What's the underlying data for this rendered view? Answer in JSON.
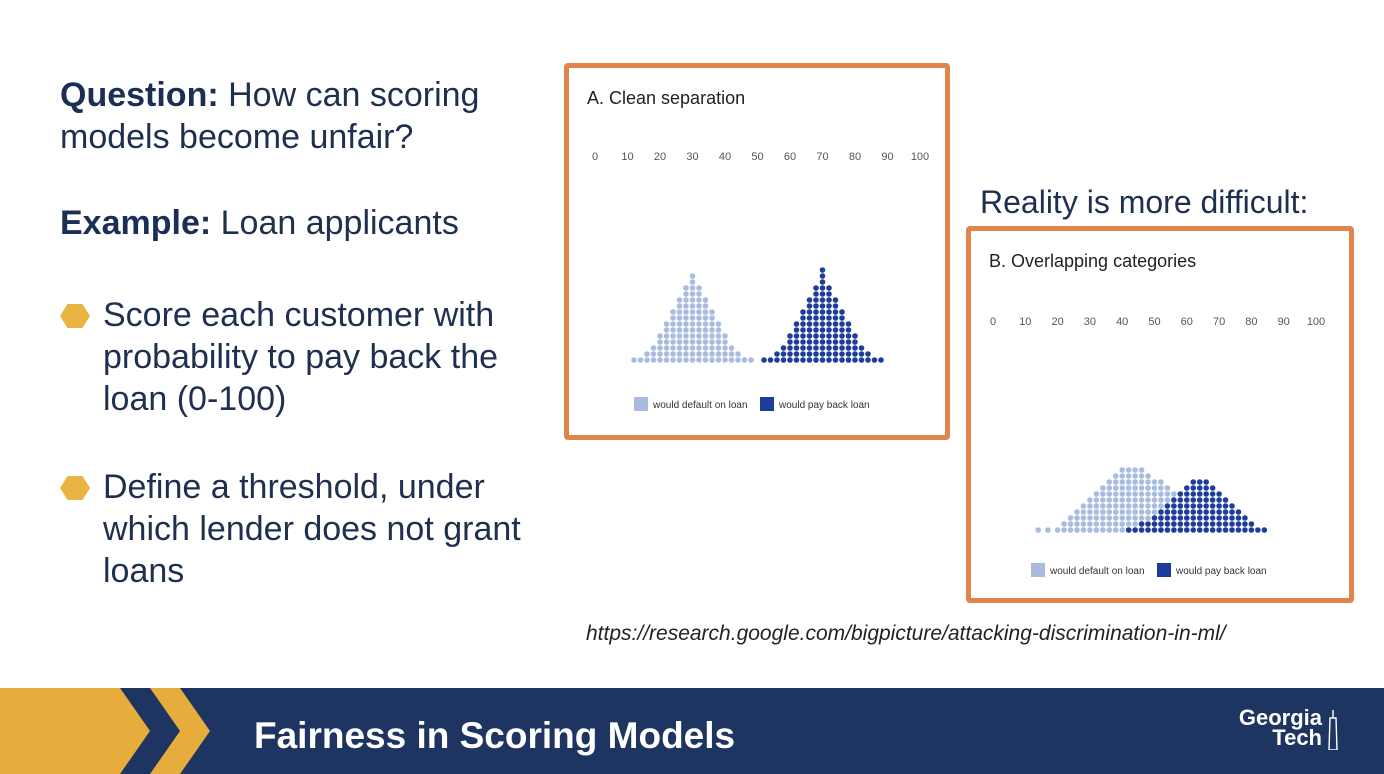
{
  "left": {
    "question_label": "Question:",
    "question_text": " How can scoring models become unfair?",
    "example_label": "Example:",
    "example_text": " Loan applicants",
    "bullets": [
      "Score each customer with probability to pay back the loan  (0-100)",
      "Define a threshold, under which lender does not grant loans"
    ]
  },
  "reality_text": "Reality is more difficult:",
  "url_text": "https://research.google.com/bigpicture/attacking-discrimination-in-ml/",
  "footer": {
    "title": "Fairness in Scoring Models",
    "logo_line1": "Georgia",
    "logo_line2": "Tech"
  },
  "colors": {
    "accent_orange": "#e0854a",
    "footer_navy": "#1f3561",
    "gold": "#e6ad3c",
    "default_dot": "#a9bce0",
    "payback_dot": "#1e3d9a"
  },
  "chart_data": [
    {
      "type": "scatter",
      "title": "A. Clean separation",
      "x_ticks": [
        "0",
        "10",
        "20",
        "30",
        "40",
        "50",
        "60",
        "70",
        "80",
        "90",
        "100"
      ],
      "xlim": [
        0,
        100
      ],
      "legend": [
        "would default on loan",
        "would pay back loan"
      ],
      "series": [
        {
          "name": "would default on loan",
          "color": "#a9bce0",
          "column_x": [
            12,
            14,
            16,
            18,
            20,
            22,
            24,
            26,
            28,
            30,
            32,
            34,
            36,
            38,
            40,
            42,
            44,
            46,
            48
          ],
          "counts": [
            1,
            1,
            2,
            3,
            5,
            7,
            9,
            11,
            13,
            15,
            13,
            11,
            9,
            7,
            5,
            3,
            2,
            1,
            1
          ]
        },
        {
          "name": "would pay back loan",
          "color": "#1e3d9a",
          "column_x": [
            52,
            54,
            56,
            58,
            60,
            62,
            64,
            66,
            68,
            70,
            72,
            74,
            76,
            78,
            80,
            82,
            84,
            86,
            88
          ],
          "counts": [
            1,
            1,
            2,
            3,
            5,
            7,
            9,
            11,
            13,
            16,
            13,
            11,
            9,
            7,
            5,
            3,
            2,
            1,
            1
          ]
        }
      ]
    },
    {
      "type": "scatter",
      "title": "B. Overlapping categories",
      "x_ticks": [
        "0",
        "10",
        "20",
        "30",
        "40",
        "50",
        "60",
        "70",
        "80",
        "90",
        "100"
      ],
      "xlim": [
        0,
        100
      ],
      "legend": [
        "would default on loan",
        "would pay back loan"
      ],
      "series": [
        {
          "name": "would default on loan",
          "color": "#a9bce0",
          "column_x": [
            14,
            17,
            20,
            22,
            24,
            26,
            28,
            30,
            32,
            34,
            36,
            38,
            40,
            42,
            44,
            46,
            48,
            50,
            52,
            54,
            56,
            58,
            60
          ],
          "counts": [
            1,
            1,
            1,
            2,
            3,
            4,
            5,
            6,
            7,
            8,
            9,
            10,
            11,
            11,
            11,
            11,
            10,
            9,
            9,
            8,
            7,
            5,
            3
          ]
        },
        {
          "name": "would pay back loan",
          "color": "#1e3d9a",
          "column_x": [
            42,
            44,
            46,
            48,
            50,
            52,
            54,
            56,
            58,
            60,
            62,
            64,
            66,
            68,
            70,
            72,
            74,
            76,
            78,
            80,
            82,
            84
          ],
          "counts": [
            1,
            1,
            2,
            2,
            3,
            4,
            5,
            6,
            7,
            8,
            9,
            9,
            9,
            8,
            7,
            6,
            5,
            4,
            3,
            2,
            1,
            1
          ]
        }
      ]
    }
  ]
}
